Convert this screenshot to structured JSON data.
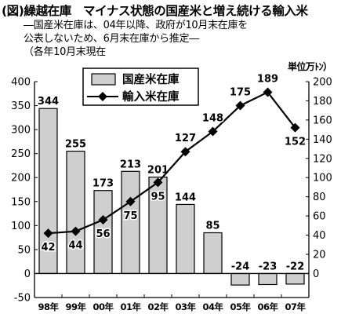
{
  "title": "(図)繰越在庫　マイナス状態の国産米と増え続ける輸入米",
  "note_lines": [
    "―国産米在庫は、04年以降、政府が10月末在庫を",
    "公表しないため、6月末在庫から推定―",
    "（各年10月末現在"
  ],
  "unit_label": "単位万ﾄﾝ）",
  "chart_data": {
    "type": "bar+line",
    "categories": [
      "98年",
      "99年",
      "00年",
      "01年",
      "02年",
      "03年",
      "04年",
      "05年",
      "06年",
      "07年"
    ],
    "series": [
      {
        "name": "国産米在庫",
        "kind": "bar",
        "axis": "left",
        "values": [
          344,
          255,
          173,
          213,
          201,
          144,
          85,
          -24,
          -23,
          -22
        ],
        "labels": [
          "344",
          "255",
          "173",
          "213",
          "201",
          "144",
          "85",
          "-24",
          "-23",
          "-22"
        ]
      },
      {
        "name": "輸入米在庫",
        "kind": "line",
        "axis": "right",
        "values": [
          42,
          44,
          56,
          75,
          95,
          127,
          148,
          175,
          189,
          152
        ],
        "labels": [
          "42",
          "44",
          "56",
          "75",
          "95",
          "127",
          "148",
          "175",
          "189",
          "152"
        ]
      }
    ],
    "y_left": {
      "min": -50,
      "max": 400,
      "ticks": [
        "400",
        "350",
        "300",
        "250",
        "200",
        "150",
        "100",
        "50",
        "0",
        "-50"
      ]
    },
    "y_right": {
      "min": -25,
      "max": 200,
      "ticks": [
        "200",
        "180",
        "160",
        "140",
        "120",
        "100",
        "80",
        "60",
        "40",
        "20",
        "0"
      ]
    },
    "grid": false,
    "legend_position": "top-left",
    "colors": {
      "bar_fill": "#cfcfcf",
      "bar_stroke": "#000000",
      "line": "#000000",
      "marker": "#000000"
    }
  }
}
